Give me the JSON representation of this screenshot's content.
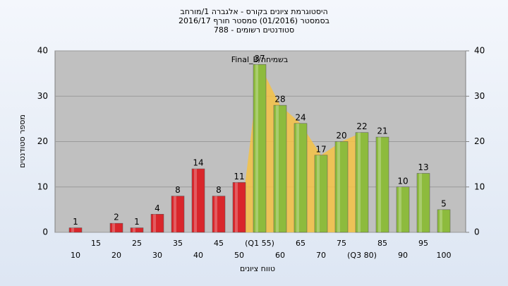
{
  "chart_data": {
    "type": "bar",
    "title": [
      "היסטוגרמת ציונים בקורס - אלגברה 1/מורחב",
      "בסמסטר (01/2016) סמסטר חורף 2016/17",
      "סטודנטים רשומים - 788"
    ],
    "annotation": "בשמיחה/Final_B",
    "x_label": "טווח ציונים",
    "y_label": "מספר סטודנטים",
    "categories": [
      "10",
      "15",
      "20",
      "25",
      "30",
      "35",
      "40",
      "45",
      "50",
      "(Q1 55)",
      "60",
      "65",
      "70",
      "75",
      "(Q3 80)",
      "85",
      "90",
      "95",
      "100"
    ],
    "values": [
      1,
      null,
      2,
      1,
      4,
      8,
      14,
      8,
      11,
      37,
      28,
      24,
      17,
      20,
      22,
      21,
      10,
      13,
      5
    ],
    "colors": [
      "#d9262b",
      "#d9262b",
      "#d9262b",
      "#d9262b",
      "#d9262b",
      "#d9262b",
      "#d9262b",
      "#d9262b",
      "#d9262b",
      "#8dbb3d",
      "#8dbb3d",
      "#8dbb3d",
      "#8dbb3d",
      "#8dbb3d",
      "#8dbb3d",
      "#8dbb3d",
      "#8dbb3d",
      "#8dbb3d",
      "#8dbb3d"
    ],
    "ylim": [
      0,
      40
    ],
    "yticks": [
      0,
      10,
      20,
      30,
      40
    ],
    "y2lim": [
      0,
      40
    ],
    "y2ticks": [
      0,
      10,
      20,
      30,
      40
    ],
    "grid": true
  }
}
